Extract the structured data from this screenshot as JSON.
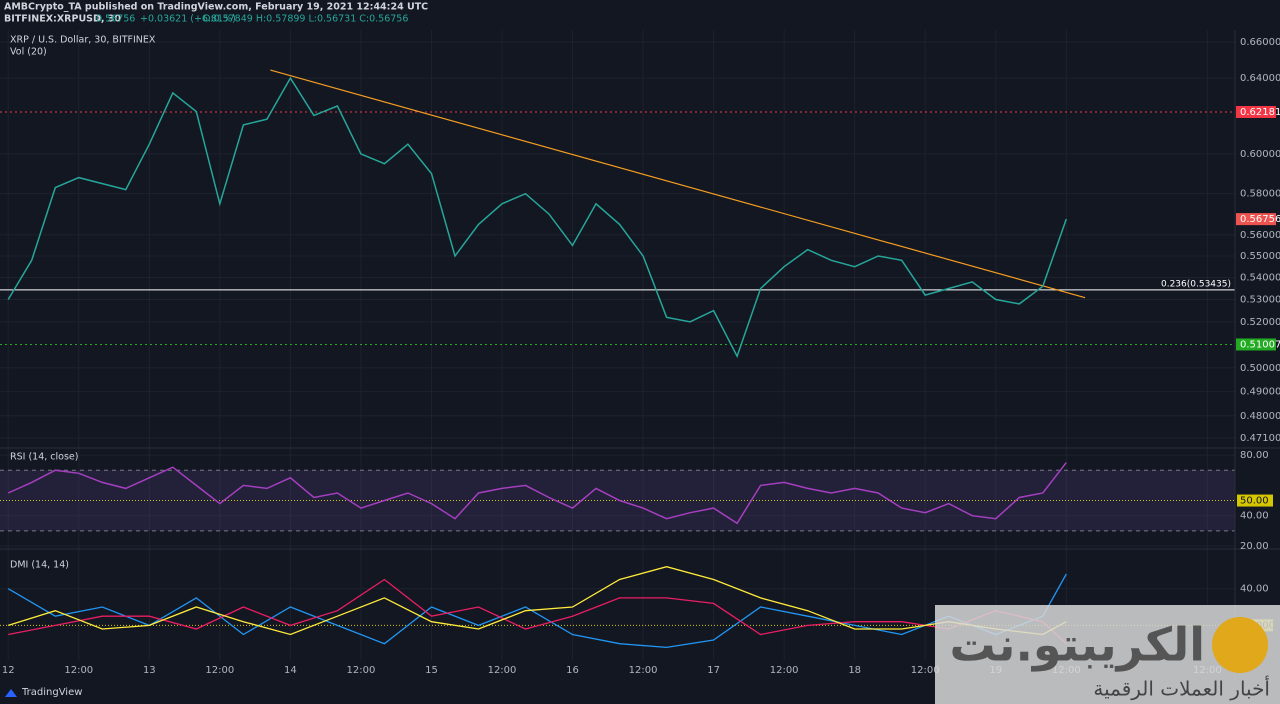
{
  "header": {
    "publisher": "AMBCrypto_TA published on TradingView.com, February 19, 2021 12:44:24 UTC",
    "symbol": "BITFINEX:XRPUSD, 30",
    "price": "0.56756",
    "change": "+0.03621 (+6.81%)",
    "ohlc": "O:0.57849 H:0.57899 L:0.56731 C:0.56756"
  },
  "footer": {
    "brand": "TradingView"
  },
  "watermark": {
    "name": "الكريبتو.نت",
    "tagline": "أخبار العملات الرقمية"
  },
  "chart_data": [
    {
      "type": "line",
      "title": "XRP / U.S. Dollar, 30, BITFINEX",
      "subtitle": "Vol (20)",
      "log": true,
      "color": "#26a69a",
      "x": [
        0,
        4,
        8,
        12,
        16,
        20,
        24,
        28,
        32,
        36,
        40,
        44,
        48,
        52,
        56,
        60,
        64,
        68,
        72,
        76,
        80,
        84,
        88,
        92,
        96,
        100,
        104,
        108,
        112,
        116,
        120,
        124,
        128,
        132,
        136,
        140,
        144,
        148,
        152,
        156,
        160,
        164,
        168,
        172,
        176,
        180
      ],
      "values": [
        0.53,
        0.548,
        0.583,
        0.588,
        0.585,
        0.582,
        0.605,
        0.632,
        0.622,
        0.575,
        0.615,
        0.618,
        0.64,
        0.62,
        0.625,
        0.6,
        0.595,
        0.605,
        0.59,
        0.55,
        0.565,
        0.575,
        0.58,
        0.57,
        0.555,
        0.575,
        0.565,
        0.55,
        0.522,
        0.52,
        0.525,
        0.505,
        0.535,
        0.545,
        0.553,
        0.548,
        0.545,
        0.55,
        0.548,
        0.532,
        0.535,
        0.538,
        0.53,
        0.528,
        0.536,
        0.5676
      ],
      "xlim": [
        -1.4,
        208.7
      ],
      "ylim": [
        0.4674,
        0.6668
      ],
      "yticks": [
        {
          "value": 0.66,
          "label": "0.66000"
        },
        {
          "value": 0.64,
          "label": "0.64000"
        },
        {
          "value": 0.6,
          "label": "0.60000"
        },
        {
          "value": 0.58,
          "label": "0.58000"
        },
        {
          "value": 0.56,
          "label": "0.56000"
        },
        {
          "value": 0.55,
          "label": "0.55000"
        },
        {
          "value": 0.54,
          "label": "0.54000"
        },
        {
          "value": 0.53,
          "label": "0.53000"
        },
        {
          "value": 0.52,
          "label": "0.52000"
        },
        {
          "value": 0.5,
          "label": "0.50000"
        },
        {
          "value": 0.49,
          "label": "0.49000"
        },
        {
          "value": 0.48,
          "label": "0.48000"
        },
        {
          "value": 0.471,
          "label": "0.47100"
        }
      ],
      "levels": [
        {
          "value": 0.62181,
          "color": "#f23645",
          "style": "dotted"
        },
        {
          "value": 0.51007,
          "color": "#22ab22",
          "style": "dotted"
        },
        {
          "value": 0.53435,
          "label": "0.236(0.53435)",
          "color": "#ffffff",
          "style": "solid"
        }
      ],
      "last_value": 0.56756,
      "last_color": "#ef5350",
      "trendline": {
        "x": [
          44.6,
          183.2
        ],
        "values": [
          0.6444,
          0.5308
        ],
        "color": "#f59d20"
      },
      "grid": true
    },
    {
      "type": "line",
      "title": "RSI (14, close)",
      "color": "#a53fc0",
      "x": [
        0,
        4,
        8,
        12,
        16,
        20,
        24,
        28,
        32,
        36,
        40,
        44,
        48,
        52,
        56,
        60,
        64,
        68,
        72,
        76,
        80,
        84,
        88,
        92,
        96,
        100,
        104,
        108,
        112,
        116,
        120,
        124,
        128,
        132,
        136,
        140,
        144,
        148,
        152,
        156,
        160,
        164,
        168,
        172,
        176,
        180
      ],
      "values": [
        55,
        62,
        70,
        68,
        62,
        58,
        65,
        72,
        60,
        48,
        60,
        58,
        65,
        52,
        55,
        45,
        50,
        55,
        48,
        38,
        55,
        58,
        60,
        52,
        45,
        58,
        50,
        45,
        38,
        42,
        45,
        35,
        60,
        62,
        58,
        55,
        58,
        55,
        45,
        42,
        48,
        40,
        38,
        52,
        55,
        75
      ],
      "xlim": [
        -1.4,
        208.7
      ],
      "ylim": [
        18.7,
        84
      ],
      "yticks": [
        {
          "value": 80,
          "label": "80.00"
        },
        {
          "value": 40,
          "label": "40.00"
        },
        {
          "value": 20,
          "label": "20.00"
        }
      ],
      "baseline": {
        "value": 50,
        "label": "50.00",
        "color": "#d6c600"
      },
      "bands": [
        70,
        30
      ],
      "band_color": "#7e57c2"
    },
    {
      "type": "line",
      "title": "DMI (14, 14)",
      "x": [
        0,
        8,
        16,
        24,
        32,
        40,
        48,
        56,
        64,
        72,
        80,
        88,
        96,
        104,
        112,
        120,
        128,
        136,
        144,
        152,
        160,
        168,
        176,
        180
      ],
      "series": [
        {
          "color": "#2196f3",
          "values": [
            40,
            25,
            30,
            20,
            35,
            15,
            30,
            20,
            10,
            30,
            20,
            30,
            15,
            10,
            8,
            12,
            30,
            25,
            20,
            15,
            25,
            15,
            25,
            48
          ]
        },
        {
          "color": "#e91e63",
          "values": [
            15,
            20,
            25,
            25,
            18,
            30,
            20,
            28,
            45,
            25,
            30,
            18,
            25,
            35,
            35,
            32,
            15,
            20,
            22,
            22,
            18,
            28,
            22,
            10
          ]
        },
        {
          "color": "#ffeb3b",
          "values": [
            20,
            28,
            18,
            20,
            30,
            22,
            15,
            25,
            35,
            22,
            18,
            28,
            30,
            45,
            52,
            45,
            35,
            28,
            18,
            18,
            22,
            18,
            15,
            22
          ]
        }
      ],
      "xlim": [
        -1.4,
        208.7
      ],
      "ylim": [
        1.1,
        61.1
      ],
      "yticks": [
        {
          "value": 40,
          "label": "40.00"
        }
      ],
      "baseline": {
        "value": 20,
        "label": "20.0000",
        "color": "#d6c600"
      },
      "xticks": [
        {
          "value": 0,
          "label": "12"
        },
        {
          "value": 12,
          "label": "12:00"
        },
        {
          "value": 24,
          "label": "13"
        },
        {
          "value": 36,
          "label": "12:00"
        },
        {
          "value": 48,
          "label": "14"
        },
        {
          "value": 60,
          "label": "12:00"
        },
        {
          "value": 72,
          "label": "15"
        },
        {
          "value": 84,
          "label": "12:00"
        },
        {
          "value": 96,
          "label": "16"
        },
        {
          "value": 108,
          "label": "12:00"
        },
        {
          "value": 120,
          "label": "17"
        },
        {
          "value": 132,
          "label": "12:00"
        },
        {
          "value": 144,
          "label": "18"
        },
        {
          "value": 156,
          "label": "12:00"
        },
        {
          "value": 168,
          "label": "19"
        },
        {
          "value": 180,
          "label": "12:00"
        },
        {
          "value": 204,
          "label": "12:00"
        }
      ]
    }
  ]
}
